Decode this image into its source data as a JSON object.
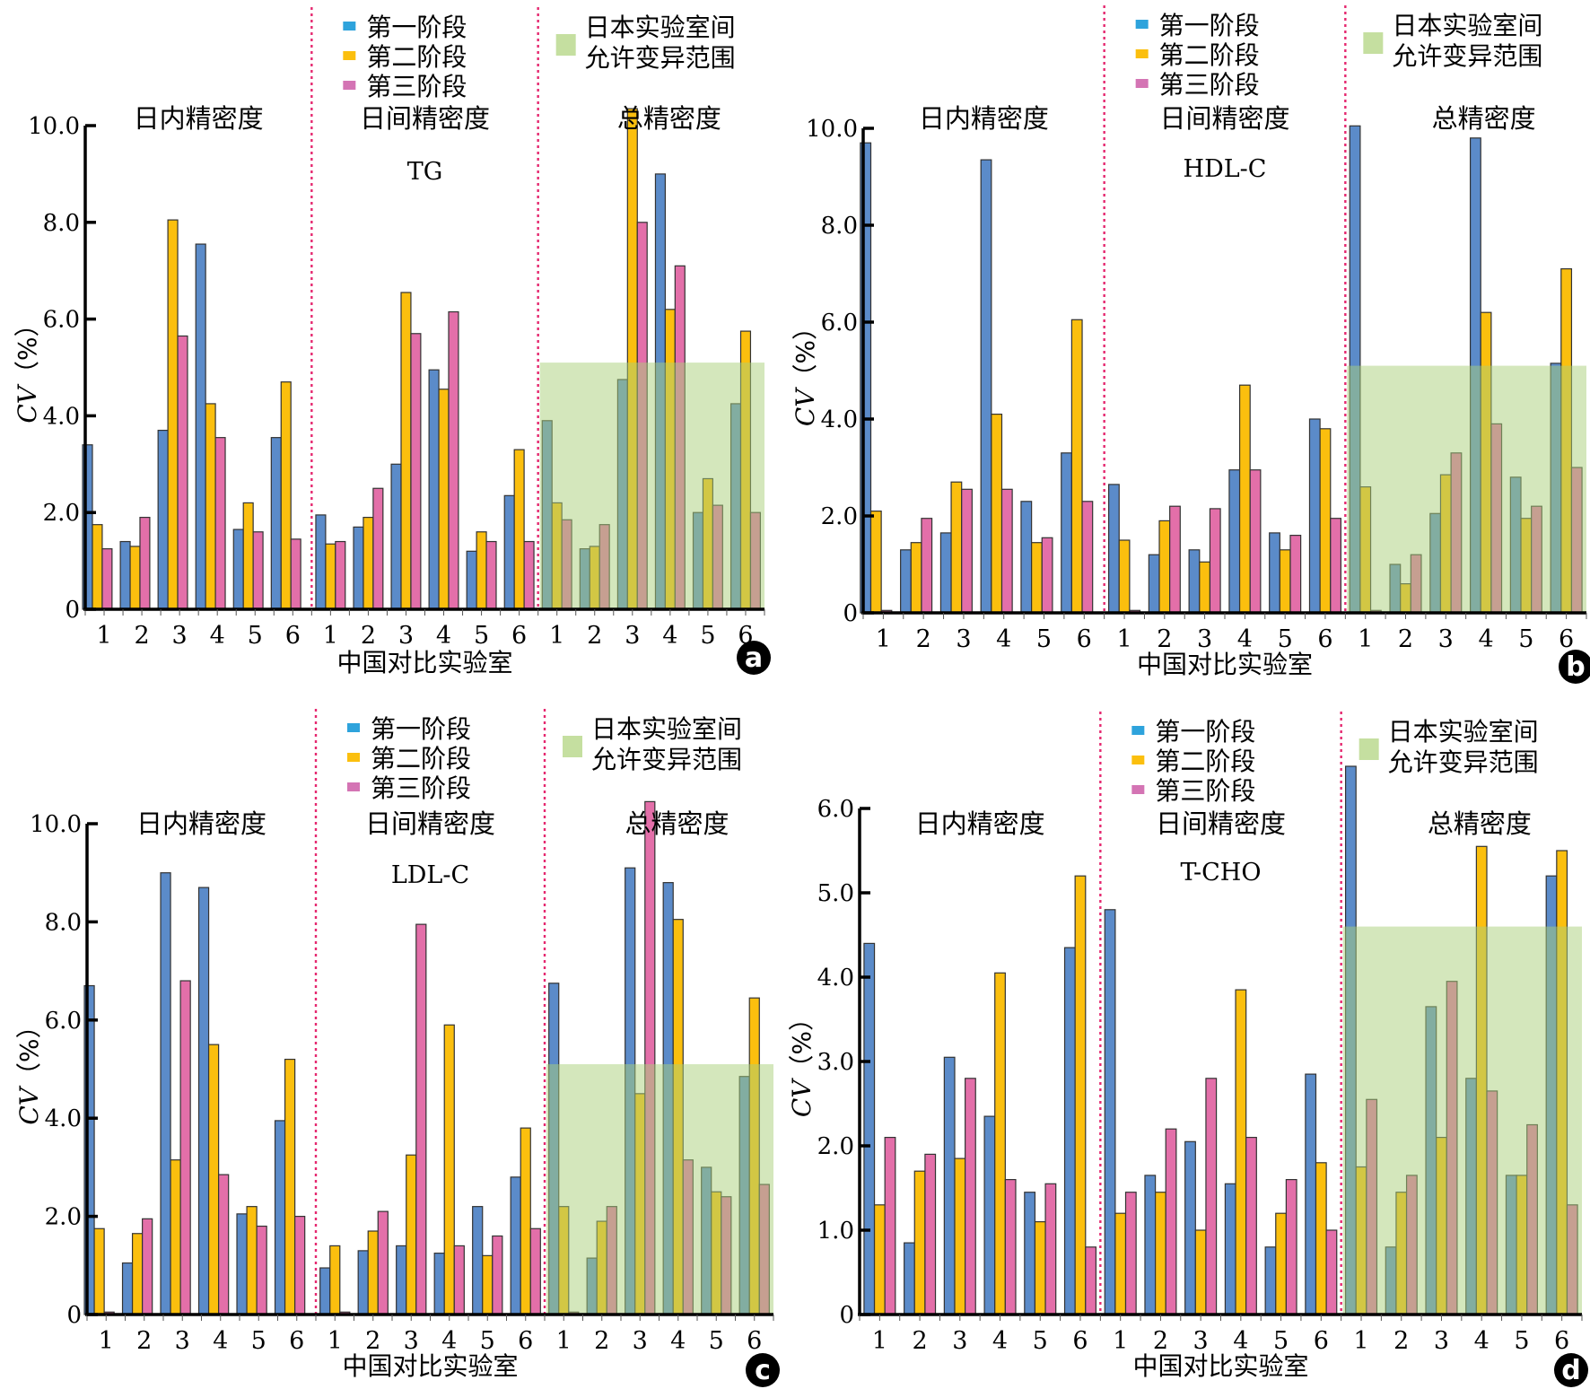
{
  "figure": {
    "panel_badges": [
      "a",
      "b",
      "c",
      "d"
    ],
    "legend_series": [
      "第一阶段",
      "第二阶段",
      "第三阶段"
    ],
    "legend_band_label_line1": "日本实验室间",
    "legend_band_label_line2": "允许变异范围",
    "section_titles": [
      "日内精密度",
      "日间精密度",
      "总精密度"
    ],
    "colors": {
      "series_bar": [
        "#5b8bc9",
        "#fbbf0e",
        "#e36fa9"
      ],
      "series_legend": [
        "#2ea3dc",
        "#fbbf0e",
        "#d474b4"
      ],
      "band": "#c5dfa0",
      "divider": "#e5286f",
      "axis": "#000000"
    }
  },
  "chart_data": [
    {
      "type": "bar",
      "panel": "a",
      "title": "TG",
      "xlabel": "中国对比实验室",
      "ylabel": "CV（%）",
      "ylim": [
        0,
        10
      ],
      "yticks": [
        "0",
        "2.0",
        "4.0",
        "6.0",
        "8.0",
        "10.0"
      ],
      "ytick_values": [
        0,
        2,
        4,
        6,
        8,
        10
      ],
      "groups": [
        "日内精密度",
        "日间精密度",
        "总精密度"
      ],
      "categories": [
        "1",
        "2",
        "3",
        "4",
        "5",
        "6"
      ],
      "band": {
        "label": "日本实验室间允许变异范围",
        "group": "总精密度",
        "y_max": 5.1
      },
      "legend": "top",
      "series": [
        {
          "name": "第一阶段",
          "values": [
            [
              3.4,
              1.4,
              3.7,
              7.55,
              1.65,
              3.55
            ],
            [
              1.95,
              1.7,
              3.0,
              4.95,
              1.2,
              2.35
            ],
            [
              3.9,
              1.25,
              4.75,
              9.0,
              2.0,
              4.25
            ]
          ]
        },
        {
          "name": "第二阶段",
          "values": [
            [
              1.75,
              1.3,
              8.05,
              4.25,
              2.2,
              4.7
            ],
            [
              1.35,
              1.9,
              6.55,
              4.55,
              1.6,
              3.3
            ],
            [
              2.2,
              1.3,
              10.35,
              6.2,
              2.7,
              5.75
            ]
          ]
        },
        {
          "name": "第三阶段",
          "values": [
            [
              1.25,
              1.9,
              5.65,
              3.55,
              1.6,
              1.45
            ],
            [
              1.4,
              2.5,
              5.7,
              6.15,
              1.4,
              1.4
            ],
            [
              1.85,
              1.75,
              8.0,
              7.1,
              2.15,
              2.0
            ]
          ]
        }
      ]
    },
    {
      "type": "bar",
      "panel": "b",
      "title": "HDL-C",
      "xlabel": "中国对比实验室",
      "ylabel": "CV（%）",
      "ylim": [
        0,
        10
      ],
      "yticks": [
        "0",
        "2.0",
        "4.0",
        "6.0",
        "8.0",
        "10.0"
      ],
      "ytick_values": [
        0,
        2,
        4,
        6,
        8,
        10
      ],
      "groups": [
        "日内精密度",
        "日间精密度",
        "总精密度"
      ],
      "categories": [
        "1",
        "2",
        "3",
        "4",
        "5",
        "6"
      ],
      "band": {
        "label": "日本实验室间允许变异范围",
        "group": "总精密度",
        "y_max": 5.1
      },
      "legend": "top",
      "series": [
        {
          "name": "第一阶段",
          "values": [
            [
              9.7,
              1.3,
              1.65,
              9.35,
              2.3,
              3.3
            ],
            [
              2.65,
              1.2,
              1.3,
              2.95,
              1.65,
              4.0
            ],
            [
              10.05,
              1.0,
              2.05,
              9.8,
              2.8,
              5.15
            ]
          ]
        },
        {
          "name": "第二阶段",
          "values": [
            [
              2.1,
              1.45,
              2.7,
              4.1,
              1.45,
              6.05
            ],
            [
              1.5,
              1.9,
              1.05,
              4.7,
              1.3,
              3.8
            ],
            [
              2.6,
              0.6,
              2.85,
              6.2,
              1.95,
              7.1
            ]
          ]
        },
        {
          "name": "第三阶段",
          "values": [
            [
              0.05,
              1.95,
              2.55,
              2.55,
              1.55,
              2.3
            ],
            [
              0.05,
              2.2,
              2.15,
              2.95,
              1.6,
              1.95
            ],
            [
              0.05,
              1.2,
              3.3,
              3.9,
              2.2,
              3.0
            ]
          ]
        }
      ]
    },
    {
      "type": "bar",
      "panel": "c",
      "title": "LDL-C",
      "xlabel": "中国对比实验室",
      "ylabel": "CV（%）",
      "ylim": [
        0,
        10
      ],
      "yticks": [
        "0",
        "2.0",
        "4.0",
        "6.0",
        "8.0",
        "10.0"
      ],
      "ytick_values": [
        0,
        2,
        4,
        6,
        8,
        10
      ],
      "groups": [
        "日内精密度",
        "日间精密度",
        "总精密度"
      ],
      "categories": [
        "1",
        "2",
        "3",
        "4",
        "5",
        "6"
      ],
      "band": {
        "label": "日本实验室间允许变异范围",
        "group": "总精密度",
        "y_max": 5.1
      },
      "legend": "top",
      "series": [
        {
          "name": "第一阶段",
          "values": [
            [
              6.7,
              1.05,
              9.0,
              8.7,
              2.05,
              3.95
            ],
            [
              0.95,
              1.3,
              1.4,
              1.25,
              2.2,
              2.8
            ],
            [
              6.75,
              1.15,
              9.1,
              8.8,
              3.0,
              4.85
            ]
          ]
        },
        {
          "name": "第二阶段",
          "values": [
            [
              1.75,
              1.65,
              3.15,
              5.5,
              2.2,
              5.2
            ],
            [
              1.4,
              1.7,
              3.25,
              5.9,
              1.2,
              3.8
            ],
            [
              2.2,
              1.9,
              4.5,
              8.05,
              2.5,
              6.45
            ]
          ]
        },
        {
          "name": "第三阶段",
          "values": [
            [
              0.05,
              1.95,
              6.8,
              2.85,
              1.8,
              2.0
            ],
            [
              0.05,
              2.1,
              7.95,
              1.4,
              1.6,
              1.75
            ],
            [
              0.05,
              2.2,
              10.45,
              3.15,
              2.4,
              2.65
            ]
          ]
        }
      ]
    },
    {
      "type": "bar",
      "panel": "d",
      "title": "T-CHO",
      "xlabel": "中国对比实验室",
      "ylabel": "CV（%）",
      "ylim": [
        0,
        6
      ],
      "yticks": [
        "0",
        "1.0",
        "2.0",
        "3.0",
        "4.0",
        "5.0",
        "6.0"
      ],
      "ytick_values": [
        0,
        1,
        2,
        3,
        4,
        5,
        6
      ],
      "groups": [
        "日内精密度",
        "日间精密度",
        "总精密度"
      ],
      "categories": [
        "1",
        "2",
        "3",
        "4",
        "5",
        "6"
      ],
      "band": {
        "label": "日本实验室间允许变异范围",
        "group": "总精密度",
        "y_max": 4.6
      },
      "legend": "top",
      "series": [
        {
          "name": "第一阶段",
          "values": [
            [
              4.4,
              0.85,
              3.05,
              2.35,
              1.45,
              4.35
            ],
            [
              4.8,
              1.65,
              2.05,
              1.55,
              0.8,
              2.85
            ],
            [
              6.5,
              0.8,
              3.65,
              2.8,
              1.65,
              5.2
            ]
          ]
        },
        {
          "name": "第二阶段",
          "values": [
            [
              1.3,
              1.7,
              1.85,
              4.05,
              1.1,
              5.2
            ],
            [
              1.2,
              1.45,
              1.0,
              3.85,
              1.2,
              1.8
            ],
            [
              1.75,
              1.45,
              2.1,
              5.55,
              1.65,
              5.5
            ]
          ]
        },
        {
          "name": "第三阶段",
          "values": [
            [
              2.1,
              1.9,
              2.8,
              1.6,
              1.55,
              0.8
            ],
            [
              1.45,
              2.2,
              2.8,
              2.1,
              1.6,
              1.0
            ],
            [
              2.55,
              1.65,
              3.95,
              2.65,
              2.25,
              1.3
            ]
          ]
        }
      ]
    }
  ]
}
